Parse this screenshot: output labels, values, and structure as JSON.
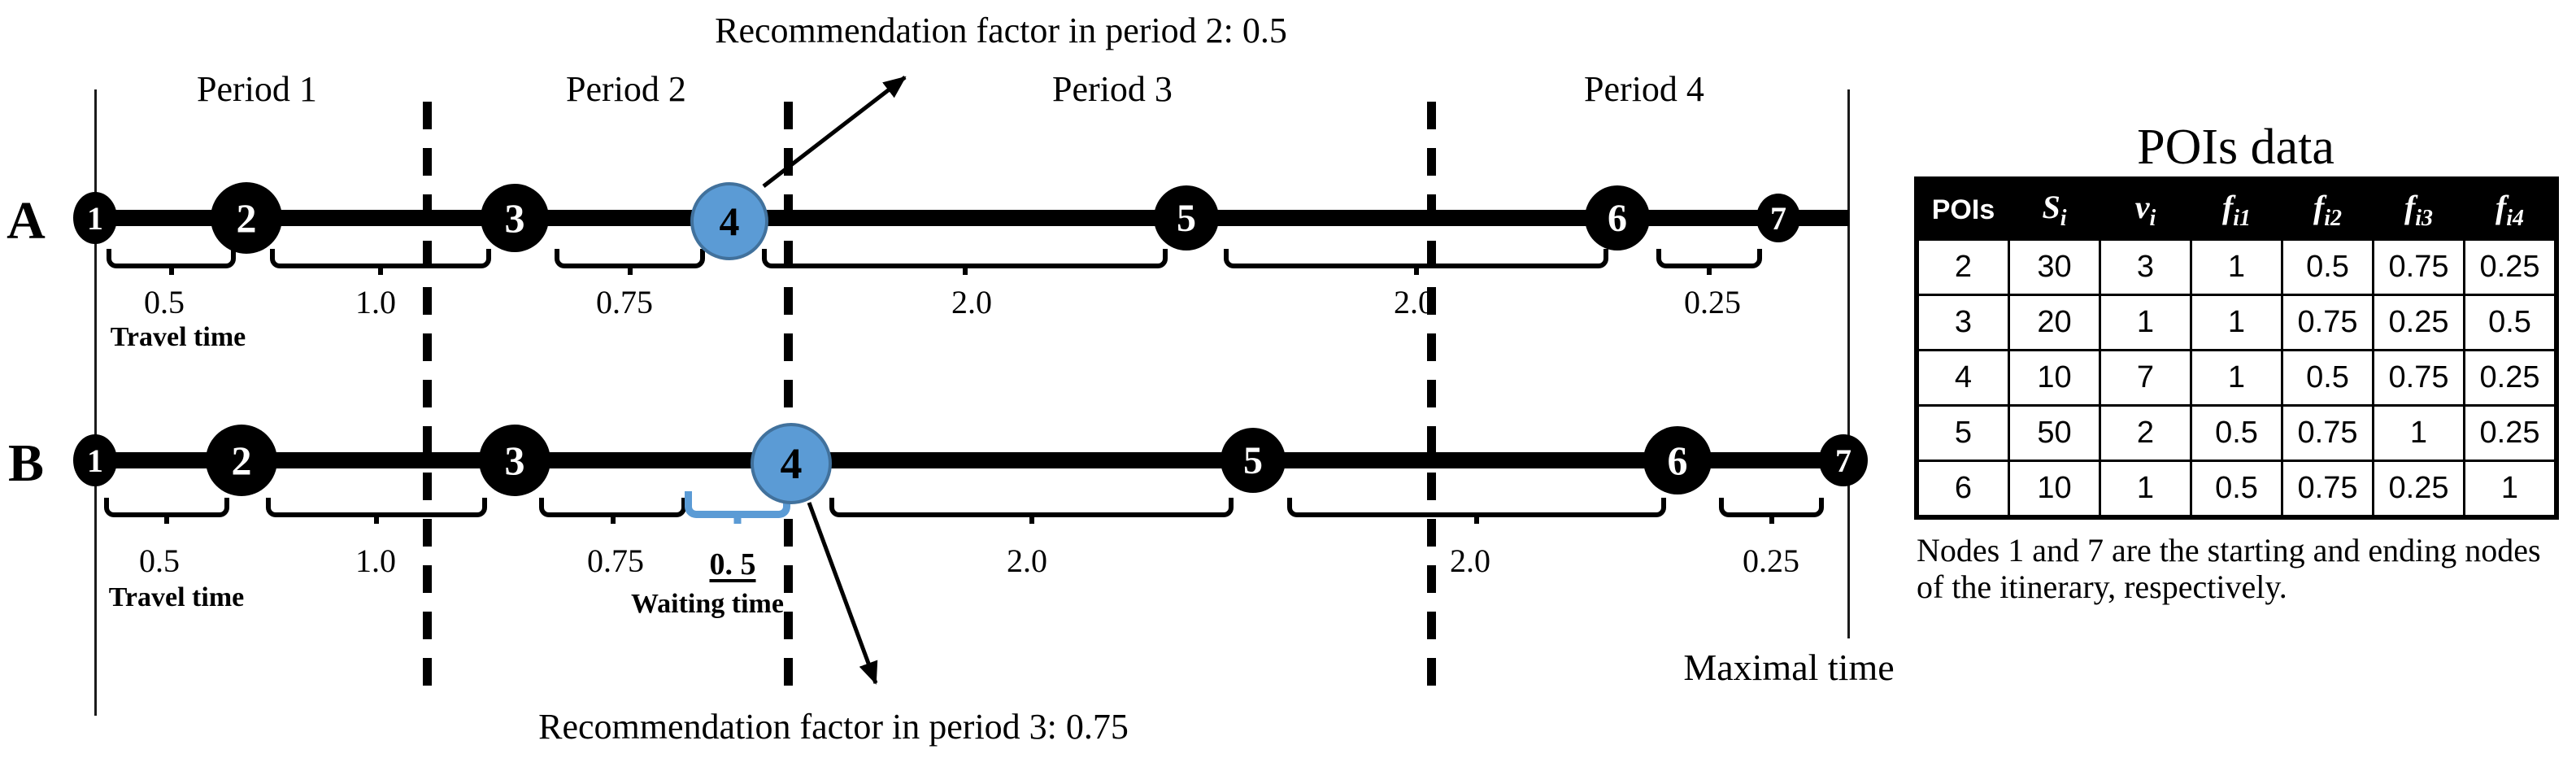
{
  "colors": {
    "node_blue_fill": "#5B9BD5",
    "node_blue_border": "#41719C",
    "ink": "#000000"
  },
  "annotations": {
    "top": "Recommendation factor in period 2: 0.5",
    "bottom": "Recommendation factor in period 3: 0.75",
    "maximal_time": "Maximal time"
  },
  "period_labels": [
    "Period 1",
    "Period 2",
    "Period 3",
    "Period 4"
  ],
  "row_a": {
    "label": "A",
    "nodes": [
      "1",
      "2",
      "3",
      "4",
      "5",
      "6",
      "7"
    ],
    "values": [
      "0.5",
      "1.0",
      "0.75",
      "2.0",
      "2.0",
      "0.25"
    ],
    "travel_time_label": "Travel time"
  },
  "row_b": {
    "label": "B",
    "nodes": [
      "1",
      "2",
      "3",
      "4",
      "5",
      "6",
      "7"
    ],
    "values": [
      "0.5",
      "1.0",
      "0.75",
      "2.0",
      "2.0",
      "0.25"
    ],
    "travel_time_label": "Travel time",
    "waiting_value": "0. 5",
    "waiting_label": "Waiting time"
  },
  "table": {
    "title": "POIs data",
    "headers": [
      {
        "base": "POIs",
        "sub": ""
      },
      {
        "base": "S",
        "sub": "i"
      },
      {
        "base": "v",
        "sub": "i"
      },
      {
        "base": "f",
        "sub": "i1"
      },
      {
        "base": "f",
        "sub": "i2"
      },
      {
        "base": "f",
        "sub": "i3"
      },
      {
        "base": "f",
        "sub": "i4"
      }
    ],
    "rows": [
      [
        "2",
        "30",
        "3",
        "1",
        "0.5",
        "0.75",
        "0.25"
      ],
      [
        "3",
        "20",
        "1",
        "1",
        "0.75",
        "0.25",
        "0.5"
      ],
      [
        "4",
        "10",
        "7",
        "1",
        "0.5",
        "0.75",
        "0.25"
      ],
      [
        "5",
        "50",
        "2",
        "0.5",
        "0.75",
        "1",
        "0.25"
      ],
      [
        "6",
        "10",
        "1",
        "0.5",
        "0.75",
        "0.25",
        "1"
      ]
    ],
    "note_lines": [
      "Nodes 1 and 7 are the starting and ending nodes",
      "of the itinerary, respectively."
    ]
  }
}
